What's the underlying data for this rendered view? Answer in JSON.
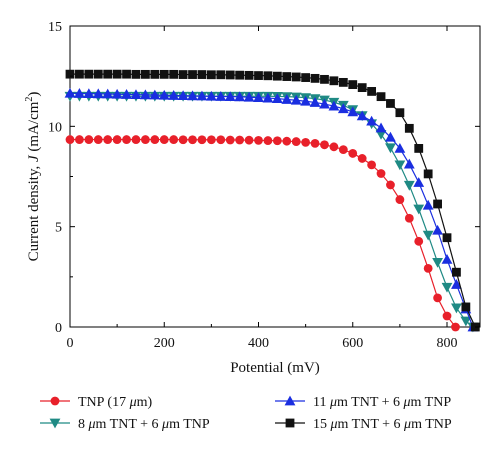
{
  "chart_data": {
    "type": "line",
    "xlabel": "Potential (mV)",
    "ylabel": "Current density, J (mA/cm²)",
    "ylabel_parts": {
      "prefix": "Current density, ",
      "italic": "J",
      "mid": " (mA/cm",
      "sup": "2",
      "suffix": ")"
    },
    "xlim": [
      0,
      870
    ],
    "ylim": [
      0,
      15
    ],
    "x_ticks": [
      0,
      200,
      400,
      600,
      800
    ],
    "y_ticks": [
      0,
      5,
      10,
      15
    ],
    "grid": false,
    "legend_position": "bottom",
    "series": [
      {
        "name": "TNP (17 μm)",
        "legend_parts": {
          "pre": "TNP (17 ",
          "mu": "μ",
          "post": "m)"
        },
        "color": "#e8202a",
        "marker": "circle",
        "x": [
          0,
          20,
          40,
          60,
          80,
          100,
          120,
          140,
          160,
          180,
          200,
          220,
          240,
          260,
          280,
          300,
          320,
          340,
          360,
          380,
          400,
          420,
          440,
          460,
          480,
          500,
          520,
          540,
          560,
          580,
          600,
          620,
          640,
          660,
          680,
          700,
          720,
          740,
          760,
          780,
          800,
          818
        ],
        "y": [
          9.34,
          9.34,
          9.34,
          9.34,
          9.34,
          9.34,
          9.34,
          9.34,
          9.34,
          9.34,
          9.34,
          9.34,
          9.33,
          9.33,
          9.33,
          9.33,
          9.33,
          9.32,
          9.32,
          9.31,
          9.3,
          9.29,
          9.28,
          9.26,
          9.24,
          9.2,
          9.15,
          9.08,
          8.98,
          8.84,
          8.65,
          8.4,
          8.08,
          7.65,
          7.08,
          6.35,
          5.42,
          4.27,
          2.92,
          1.45,
          0.55,
          0.0
        ]
      },
      {
        "name": "8 μm TNT + 6 μm TNP",
        "legend_parts": {
          "pre": "8 ",
          "mu": "μ",
          "post": "m TNT + 6 ",
          "mu2": "μ",
          "post2": "m TNP"
        },
        "color": "#1f8a84",
        "marker": "triangle-down",
        "x": [
          0,
          20,
          40,
          60,
          80,
          100,
          120,
          140,
          160,
          180,
          200,
          220,
          240,
          260,
          280,
          300,
          320,
          340,
          360,
          380,
          400,
          420,
          440,
          460,
          480,
          500,
          520,
          540,
          560,
          580,
          600,
          620,
          640,
          660,
          680,
          700,
          720,
          740,
          760,
          780,
          800,
          820,
          840,
          855
        ],
        "y": [
          11.5,
          11.5,
          11.5,
          11.5,
          11.5,
          11.5,
          11.5,
          11.5,
          11.5,
          11.5,
          11.5,
          11.5,
          11.5,
          11.5,
          11.5,
          11.5,
          11.5,
          11.5,
          11.5,
          11.5,
          11.5,
          11.5,
          11.49,
          11.48,
          11.46,
          11.43,
          11.38,
          11.31,
          11.2,
          11.05,
          10.83,
          10.53,
          10.13,
          9.6,
          8.93,
          8.08,
          7.06,
          5.88,
          4.58,
          3.22,
          1.98,
          0.95,
          0.3,
          0.0
        ]
      },
      {
        "name": "11 μm TNT + 6 μm TNP",
        "legend_parts": {
          "pre": "11 ",
          "mu": "μ",
          "post": "m TNT + 6 ",
          "mu2": "μ",
          "post2": "m TNP"
        },
        "color": "#1a2ee0",
        "marker": "triangle-up",
        "x": [
          0,
          20,
          40,
          60,
          80,
          100,
          120,
          140,
          160,
          180,
          200,
          220,
          240,
          260,
          280,
          300,
          320,
          340,
          360,
          380,
          400,
          420,
          440,
          460,
          480,
          500,
          520,
          540,
          560,
          580,
          600,
          620,
          640,
          660,
          680,
          700,
          720,
          740,
          760,
          780,
          800,
          820,
          840,
          855
        ],
        "y": [
          11.65,
          11.64,
          11.63,
          11.62,
          11.61,
          11.6,
          11.59,
          11.58,
          11.57,
          11.56,
          11.55,
          11.54,
          11.53,
          11.52,
          11.51,
          11.5,
          11.49,
          11.48,
          11.47,
          11.45,
          11.43,
          11.41,
          11.38,
          11.34,
          11.3,
          11.25,
          11.19,
          11.11,
          11.01,
          10.88,
          10.72,
          10.52,
          10.26,
          9.92,
          9.46,
          8.9,
          8.12,
          7.2,
          6.07,
          4.82,
          3.37,
          2.12,
          0.9,
          0.0
        ]
      },
      {
        "name": "15 μm TNT + 6 μm TNP",
        "legend_parts": {
          "pre": "15 ",
          "mu": "μ",
          "post": "m TNT + 6 ",
          "mu2": "μ",
          "post2": "m TNP"
        },
        "color": "#111111",
        "marker": "square",
        "x": [
          0,
          20,
          40,
          60,
          80,
          100,
          120,
          140,
          160,
          180,
          200,
          220,
          240,
          260,
          280,
          300,
          320,
          340,
          360,
          380,
          400,
          420,
          440,
          460,
          480,
          500,
          520,
          540,
          560,
          580,
          600,
          620,
          640,
          660,
          680,
          700,
          720,
          740,
          760,
          780,
          800,
          820,
          840,
          860
        ],
        "y": [
          12.6,
          12.6,
          12.6,
          12.6,
          12.6,
          12.6,
          12.6,
          12.59,
          12.59,
          12.59,
          12.59,
          12.59,
          12.58,
          12.58,
          12.58,
          12.57,
          12.57,
          12.56,
          12.55,
          12.54,
          12.53,
          12.52,
          12.5,
          12.48,
          12.46,
          12.43,
          12.39,
          12.34,
          12.27,
          12.19,
          12.08,
          11.93,
          11.74,
          11.48,
          11.14,
          10.68,
          9.9,
          8.9,
          7.63,
          6.13,
          4.45,
          2.73,
          1.0,
          0.0
        ]
      }
    ]
  }
}
